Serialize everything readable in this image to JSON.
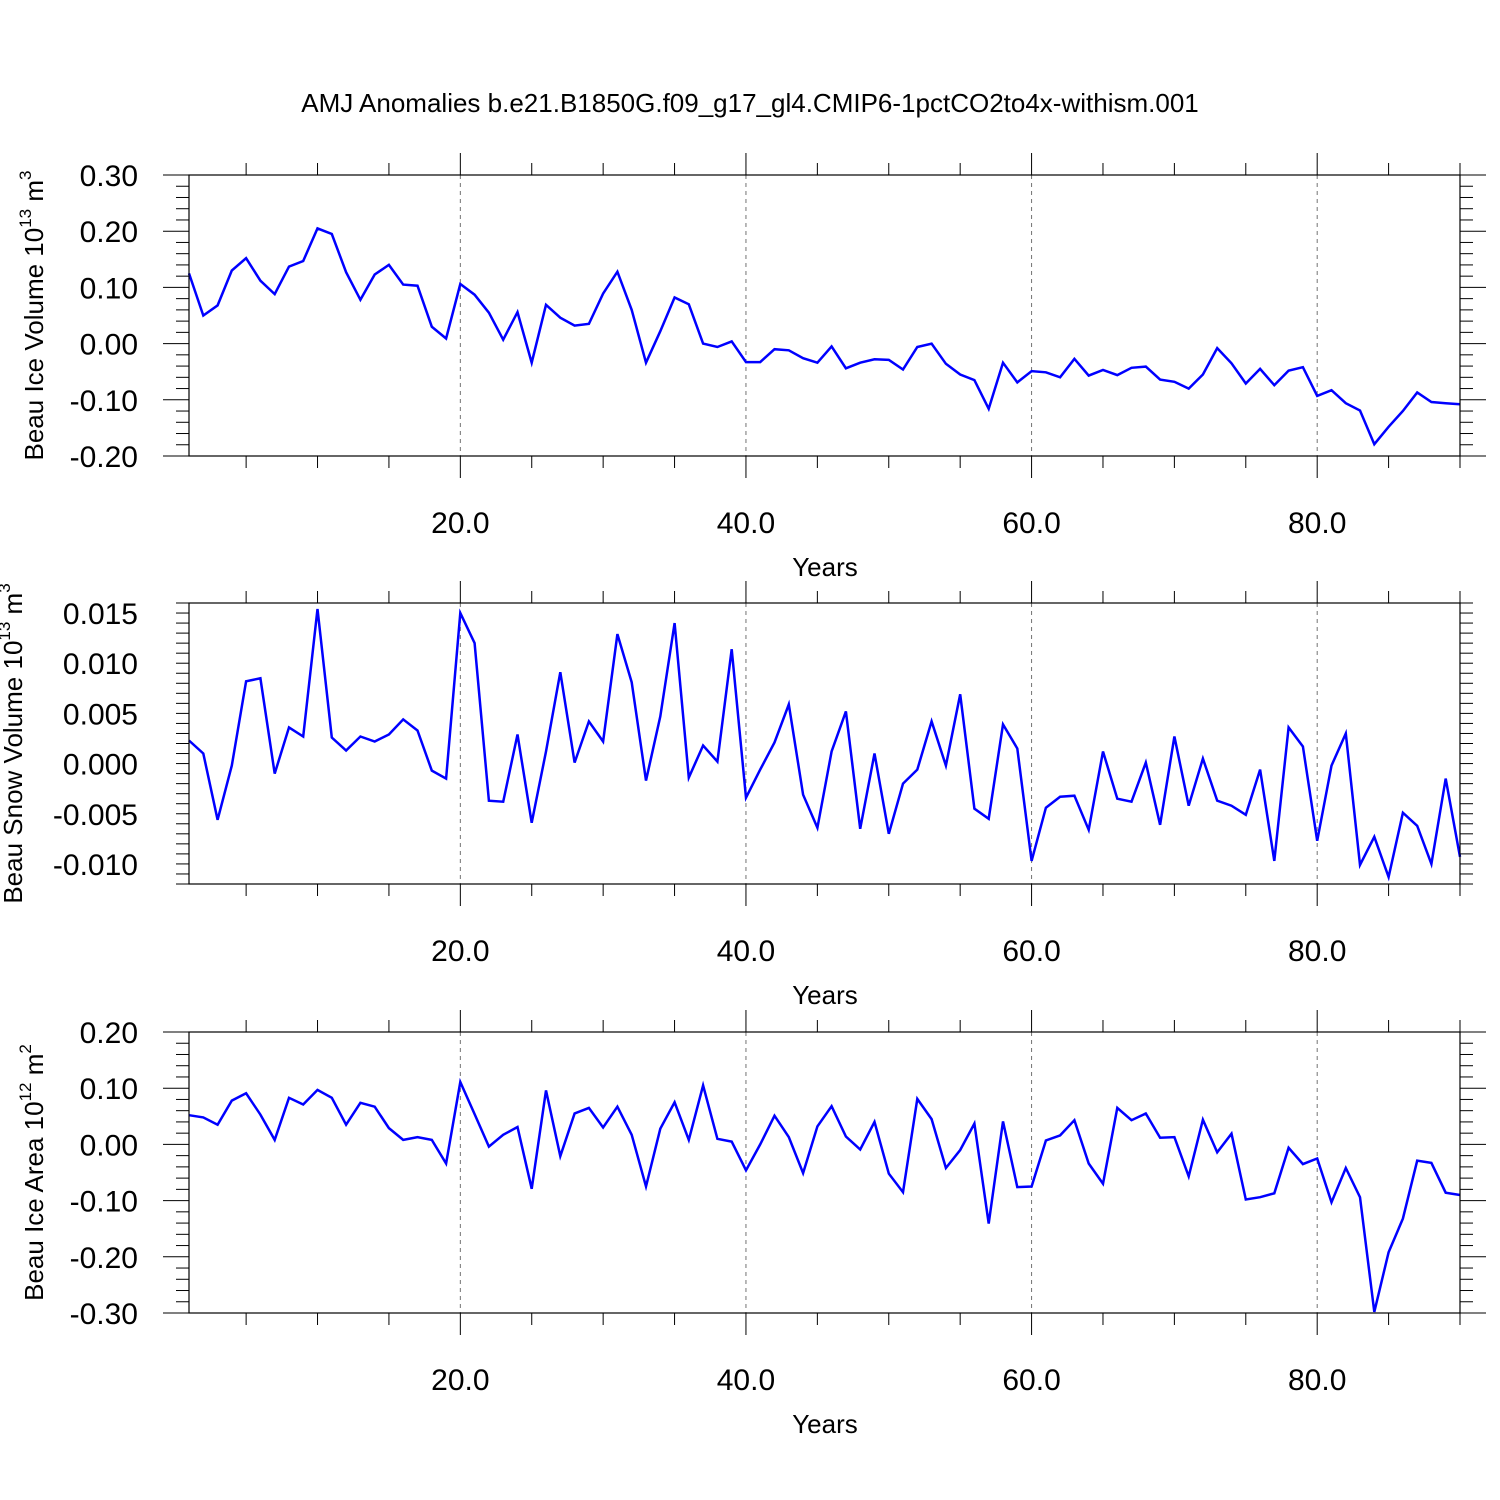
{
  "title": "AMJ Anomalies b.e21.B1850G.f09_g17_gl4.CMIP6-1pctCO2to4x-withism.001",
  "colors": {
    "line": "#0000ff",
    "axis": "#000000",
    "grid": "#000000"
  },
  "chart_data": [
    {
      "type": "line",
      "ylabel": "Beau Ice Volume 10",
      "ylabel_exp": "13",
      "ylabel_unit": " m",
      "ylabel_unit_exp": "3",
      "xlabel": "Years",
      "xlim": [
        1,
        90
      ],
      "ylim": [
        -0.2,
        0.3
      ],
      "yticks": [
        -0.2,
        -0.1,
        0.0,
        0.1,
        0.2,
        0.3
      ],
      "ytick_labels": [
        "-0.20",
        "-0.10",
        "0.00",
        "0.10",
        "0.20",
        "0.30"
      ],
      "xticks": [
        20,
        40,
        60,
        80
      ],
      "xtick_labels": [
        "20.0",
        "40.0",
        "60.0",
        "80.0"
      ],
      "grid": "vertical dashed at major x ticks",
      "x": [
        1,
        2,
        3,
        4,
        5,
        6,
        7,
        8,
        9,
        10,
        11,
        12,
        13,
        14,
        15,
        16,
        17,
        18,
        19,
        20,
        21,
        22,
        23,
        24,
        25,
        26,
        27,
        28,
        29,
        30,
        31,
        32,
        33,
        34,
        35,
        36,
        37,
        38,
        39,
        40,
        41,
        42,
        43,
        44,
        45,
        46,
        47,
        48,
        49,
        50,
        51,
        52,
        53,
        54,
        55,
        56,
        57,
        58,
        59,
        60,
        61,
        62,
        63,
        64,
        65,
        66,
        67,
        68,
        69,
        70,
        71,
        72,
        73,
        74,
        75,
        76,
        77,
        78,
        79,
        80,
        81,
        82,
        83,
        84,
        85,
        86,
        87,
        88,
        89,
        90
      ],
      "values": [
        0.125,
        0.05,
        0.068,
        0.13,
        0.152,
        0.112,
        0.088,
        0.137,
        0.147,
        0.205,
        0.195,
        0.127,
        0.078,
        0.123,
        0.14,
        0.105,
        0.103,
        0.03,
        0.009,
        0.106,
        0.087,
        0.055,
        0.007,
        0.056,
        -0.034,
        0.069,
        0.046,
        0.032,
        0.035,
        0.089,
        0.128,
        0.06,
        -0.034,
        0.022,
        0.082,
        0.07,
        0.0,
        -0.006,
        0.004,
        -0.033,
        -0.033,
        -0.01,
        -0.012,
        -0.026,
        -0.034,
        -0.005,
        -0.044,
        -0.034,
        -0.028,
        -0.029,
        -0.046,
        -0.006,
        0.0,
        -0.036,
        -0.055,
        -0.065,
        -0.116,
        -0.034,
        -0.069,
        -0.049,
        -0.051,
        -0.06,
        -0.027,
        -0.057,
        -0.047,
        -0.056,
        -0.043,
        -0.041,
        -0.064,
        -0.068,
        -0.08,
        -0.055,
        -0.008,
        -0.035,
        -0.071,
        -0.045,
        -0.074,
        -0.048,
        -0.042,
        -0.093,
        -0.083,
        -0.106,
        -0.119,
        -0.179,
        -0.148,
        -0.12,
        -0.087,
        -0.104,
        -0.106,
        -0.108
      ]
    },
    {
      "type": "line",
      "ylabel": "Beau Snow Volume 10",
      "ylabel_exp": "13",
      "ylabel_unit": " m",
      "ylabel_unit_exp": "3",
      "xlabel": "Years",
      "xlim": [
        1,
        90
      ],
      "ylim": [
        -0.012,
        0.016
      ],
      "yticks": [
        -0.01,
        -0.005,
        0.0,
        0.005,
        0.01,
        0.015
      ],
      "ytick_labels": [
        "-0.010",
        "-0.005",
        "0.000",
        "0.005",
        "0.010",
        "0.015"
      ],
      "xticks": [
        20,
        40,
        60,
        80
      ],
      "xtick_labels": [
        "20.0",
        "40.0",
        "60.0",
        "80.0"
      ],
      "grid": "vertical dashed at major x ticks",
      "x": [
        1,
        2,
        3,
        4,
        5,
        6,
        7,
        8,
        9,
        10,
        11,
        12,
        13,
        14,
        15,
        16,
        17,
        18,
        19,
        20,
        21,
        22,
        23,
        24,
        25,
        26,
        27,
        28,
        29,
        30,
        31,
        32,
        33,
        34,
        35,
        36,
        37,
        38,
        39,
        40,
        41,
        42,
        43,
        44,
        45,
        46,
        47,
        48,
        49,
        50,
        51,
        52,
        53,
        54,
        55,
        56,
        57,
        58,
        59,
        60,
        61,
        62,
        63,
        64,
        65,
        66,
        67,
        68,
        69,
        70,
        71,
        72,
        73,
        74,
        75,
        76,
        77,
        78,
        79,
        80,
        81,
        82,
        83,
        84,
        85,
        86,
        87,
        88,
        89,
        90
      ],
      "values": [
        0.0023,
        0.001,
        -0.0056,
        -0.0002,
        0.0082,
        0.0085,
        -0.001,
        0.0036,
        0.0027,
        0.0154,
        0.0026,
        0.0013,
        0.0027,
        0.0022,
        0.0029,
        0.0044,
        0.0033,
        -0.0007,
        -0.0015,
        0.015,
        0.012,
        -0.0037,
        -0.0038,
        0.0029,
        -0.0059,
        0.0012,
        0.0091,
        0.0001,
        0.0042,
        0.0022,
        0.0129,
        0.0081,
        -0.0017,
        0.0047,
        0.014,
        -0.0014,
        0.0018,
        0.0002,
        0.0114,
        -0.0034,
        -0.0006,
        0.0021,
        0.0059,
        -0.0031,
        -0.0064,
        0.0012,
        0.0052,
        -0.0065,
        0.001,
        -0.007,
        -0.002,
        -0.0006,
        0.0042,
        -0.0002,
        0.0069,
        -0.0045,
        -0.0055,
        0.0039,
        0.0015,
        -0.0097,
        -0.0044,
        -0.0033,
        -0.0032,
        -0.0066,
        0.0012,
        -0.0035,
        -0.0038,
        0.0001,
        -0.0061,
        0.0027,
        -0.0042,
        0.0005,
        -0.0037,
        -0.0042,
        -0.0051,
        -0.0006,
        -0.0097,
        0.0036,
        0.0017,
        -0.0077,
        -0.0002,
        0.003,
        -0.0101,
        -0.0073,
        -0.0113,
        -0.0049,
        -0.0062,
        -0.01,
        -0.0015,
        -0.0093
      ]
    },
    {
      "type": "line",
      "ylabel": "Beau Ice Area 10",
      "ylabel_exp": "12",
      "ylabel_unit": " m",
      "ylabel_unit_exp": "2",
      "xlabel": "Years",
      "xlim": [
        1,
        90
      ],
      "ylim": [
        -0.3,
        0.2
      ],
      "yticks": [
        -0.3,
        -0.2,
        -0.1,
        0.0,
        0.1,
        0.2
      ],
      "ytick_labels": [
        "-0.30",
        "-0.20",
        "-0.10",
        "0.00",
        "0.10",
        "0.20"
      ],
      "xticks": [
        20,
        40,
        60,
        80
      ],
      "xtick_labels": [
        "20.0",
        "40.0",
        "60.0",
        "80.0"
      ],
      "grid": "vertical dashed at major x ticks",
      "x": [
        1,
        2,
        3,
        4,
        5,
        6,
        7,
        8,
        9,
        10,
        11,
        12,
        13,
        14,
        15,
        16,
        17,
        18,
        19,
        20,
        21,
        22,
        23,
        24,
        25,
        26,
        27,
        28,
        29,
        30,
        31,
        32,
        33,
        34,
        35,
        36,
        37,
        38,
        39,
        40,
        41,
        42,
        43,
        44,
        45,
        46,
        47,
        48,
        49,
        50,
        51,
        52,
        53,
        54,
        55,
        56,
        57,
        58,
        59,
        60,
        61,
        62,
        63,
        64,
        65,
        66,
        67,
        68,
        69,
        70,
        71,
        72,
        73,
        74,
        75,
        76,
        77,
        78,
        79,
        80,
        81,
        82,
        83,
        84,
        85,
        86,
        87,
        88,
        89,
        90
      ],
      "values": [
        0.052,
        0.048,
        0.035,
        0.078,
        0.091,
        0.053,
        0.008,
        0.083,
        0.071,
        0.097,
        0.083,
        0.035,
        0.074,
        0.067,
        0.029,
        0.008,
        0.013,
        0.008,
        -0.034,
        0.111,
        0.054,
        -0.004,
        0.017,
        0.031,
        -0.079,
        0.096,
        -0.021,
        0.055,
        0.065,
        0.03,
        0.067,
        0.017,
        -0.075,
        0.028,
        0.075,
        0.008,
        0.105,
        0.01,
        0.005,
        -0.046,
        0.0,
        0.051,
        0.013,
        -0.051,
        0.032,
        0.068,
        0.014,
        -0.009,
        0.04,
        -0.052,
        -0.085,
        0.081,
        0.045,
        -0.042,
        -0.01,
        0.037,
        -0.141,
        0.041,
        -0.076,
        -0.075,
        0.007,
        0.016,
        0.043,
        -0.034,
        -0.07,
        0.065,
        0.043,
        0.055,
        0.012,
        0.013,
        -0.057,
        0.044,
        -0.014,
        0.019,
        -0.098,
        -0.094,
        -0.087,
        -0.006,
        -0.035,
        -0.025,
        -0.103,
        -0.042,
        -0.094,
        -0.298,
        -0.192,
        -0.132,
        -0.029,
        -0.033,
        -0.086,
        -0.09
      ]
    }
  ]
}
